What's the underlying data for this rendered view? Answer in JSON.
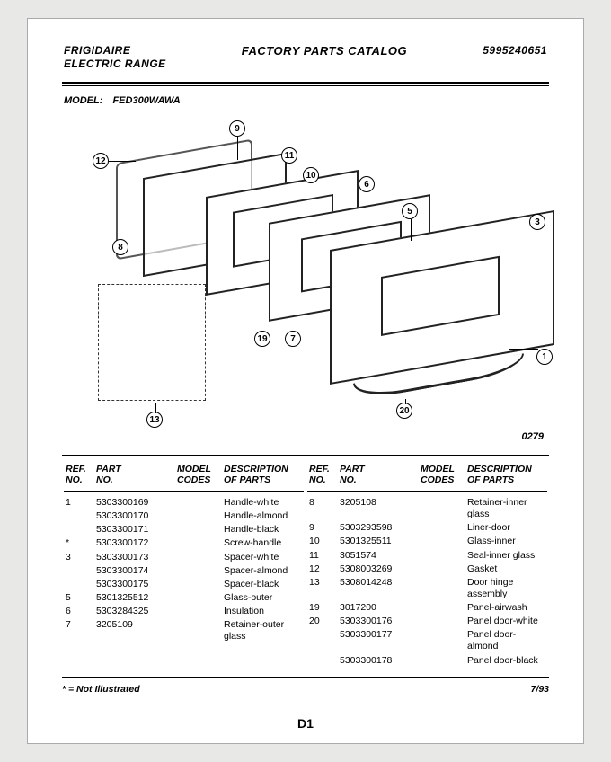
{
  "header": {
    "brand_line1": "FRIGIDAIRE",
    "brand_line2": "ELECTRIC RANGE",
    "center": "FACTORY PARTS CATALOG",
    "catalog_no": "5995240651"
  },
  "model": {
    "label": "MODEL:",
    "value": "FED300WAWA"
  },
  "diagram_code": "0279",
  "callouts": {
    "c1": "1",
    "c3": "3",
    "c5": "5",
    "c6": "6",
    "c7": "7",
    "c8": "8",
    "c9": "9",
    "c10": "10",
    "c11": "11",
    "c12": "12",
    "c13": "13",
    "c19": "19",
    "c20": "20"
  },
  "table": {
    "headers": {
      "ref": "REF.\nNO.",
      "part": "PART\nNO.",
      "model": "MODEL\nCODES",
      "desc": "DESCRIPTION\nOF PARTS"
    },
    "left": [
      {
        "ref": "1",
        "part": "5303300169",
        "desc": "Handle-white"
      },
      {
        "ref": "",
        "part": "5303300170",
        "desc": "Handle-almond"
      },
      {
        "ref": "",
        "part": "5303300171",
        "desc": "Handle-black"
      },
      {
        "ref": "*",
        "part": "5303300172",
        "desc": "Screw-handle"
      },
      {
        "ref": "3",
        "part": "5303300173",
        "desc": "Spacer-white"
      },
      {
        "ref": "",
        "part": "5303300174",
        "desc": "Spacer-almond"
      },
      {
        "ref": "",
        "part": "5303300175",
        "desc": "Spacer-black"
      },
      {
        "ref": "5",
        "part": "5301325512",
        "desc": "Glass-outer"
      },
      {
        "ref": "6",
        "part": "5303284325",
        "desc": "Insulation"
      },
      {
        "ref": "7",
        "part": "3205109",
        "desc": "Retainer-outer glass"
      }
    ],
    "right": [
      {
        "ref": "8",
        "part": "3205108",
        "desc": "Retainer-inner glass"
      },
      {
        "ref": "9",
        "part": "5303293598",
        "desc": "Liner-door"
      },
      {
        "ref": "10",
        "part": "5301325511",
        "desc": "Glass-inner"
      },
      {
        "ref": "11",
        "part": "3051574",
        "desc": "Seal-inner glass"
      },
      {
        "ref": "12",
        "part": "5308003269",
        "desc": "Gasket"
      },
      {
        "ref": "13",
        "part": "5308014248",
        "desc": "Door hinge assembly"
      },
      {
        "ref": "19",
        "part": "3017200",
        "desc": "Panel-airwash"
      },
      {
        "ref": "20",
        "part": "5303300176",
        "desc": "Panel door-white"
      },
      {
        "ref": "",
        "part": "5303300177",
        "desc": "Panel door-almond"
      },
      {
        "ref": "",
        "part": "5303300178",
        "desc": "Panel door-black"
      }
    ]
  },
  "footnote": "* = Not Illustrated",
  "date": "7/93",
  "page_no": "D1"
}
